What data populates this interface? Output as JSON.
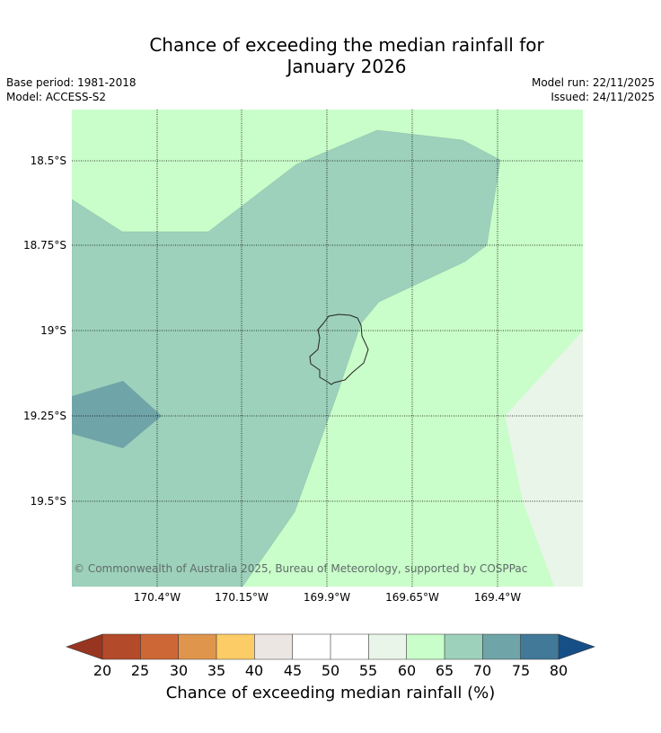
{
  "title_line1": "Chance of exceeding the median rainfall for",
  "title_line2": "January 2026",
  "base_period": "Base period: 1981-2018",
  "model": "Model: ACCESS-S2",
  "model_run": "Model run: 22/11/2025",
  "issued": "Issued: 24/11/2025",
  "copyright": "© Commonwealth of Australia 2025, Bureau of Meteorology, supported by COSPPac",
  "latitudes": [
    "18.5°S",
    "18.75°S",
    "19°S",
    "19.25°S",
    "19.5°S"
  ],
  "longitudes": [
    "170.4°W",
    "170.15°W",
    "169.9°W",
    "169.65°W",
    "169.4°W"
  ],
  "colorbar": {
    "ticks": [
      "20",
      "25",
      "30",
      "35",
      "40",
      "45",
      "50",
      "55",
      "60",
      "65",
      "70",
      "75",
      "80"
    ],
    "colors": [
      "#b34a29",
      "#cd6736",
      "#e0954d",
      "#fccc66",
      "#ece6e3",
      "#ffffff",
      "#ffffff",
      "#e8f5e8",
      "#c9fdc9",
      "#9dd1bb",
      "#6fa4a8",
      "#427898"
    ],
    "under_color": "#973520",
    "over_color": "#164f86",
    "label": "Chance of exceeding median rainfall (%)"
  },
  "map_colors": {
    "band_60_65": "#c9fdc9",
    "band_65_70": "#9dd1bb",
    "band_70_75": "#6fa4a8",
    "band_55_60": "#e8f5e8"
  }
}
